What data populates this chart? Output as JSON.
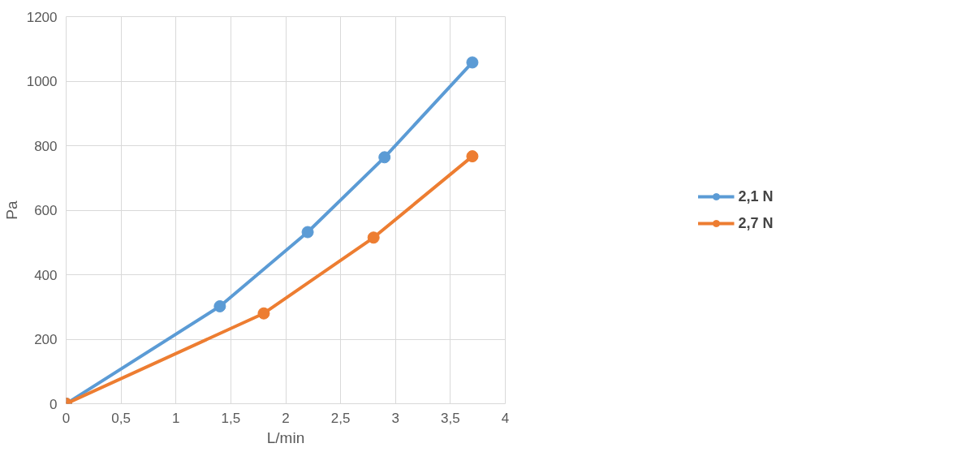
{
  "chart_data": {
    "type": "line",
    "xlabel": "L/min",
    "ylabel": "Pa",
    "xlim": [
      0,
      4
    ],
    "xticks": [
      0,
      {
        "value": 0.5,
        "label": "0,5"
      },
      1,
      {
        "value": 1.5,
        "label": "1,5"
      },
      2,
      {
        "value": 2.5,
        "label": "2,5"
      },
      3,
      {
        "value": 3.5,
        "label": "3,5"
      },
      4
    ],
    "ylim": [
      0,
      1200
    ],
    "yticks": [
      0,
      200,
      400,
      600,
      800,
      1000,
      1200
    ],
    "grid": true,
    "legend": "right",
    "marker": "circle",
    "line_style": "solid",
    "series": [
      {
        "name": "2,1 N",
        "color": "#5b9bd5",
        "x": [
          0,
          1.4,
          2.2,
          2.9,
          3.7
        ],
        "values": [
          0,
          302,
          532,
          764,
          1058
        ]
      },
      {
        "name": "2,7 N",
        "color": "#ed7d31",
        "x": [
          0,
          1.8,
          2.8,
          3.7
        ],
        "values": [
          0,
          280,
          515,
          767
        ]
      }
    ]
  }
}
